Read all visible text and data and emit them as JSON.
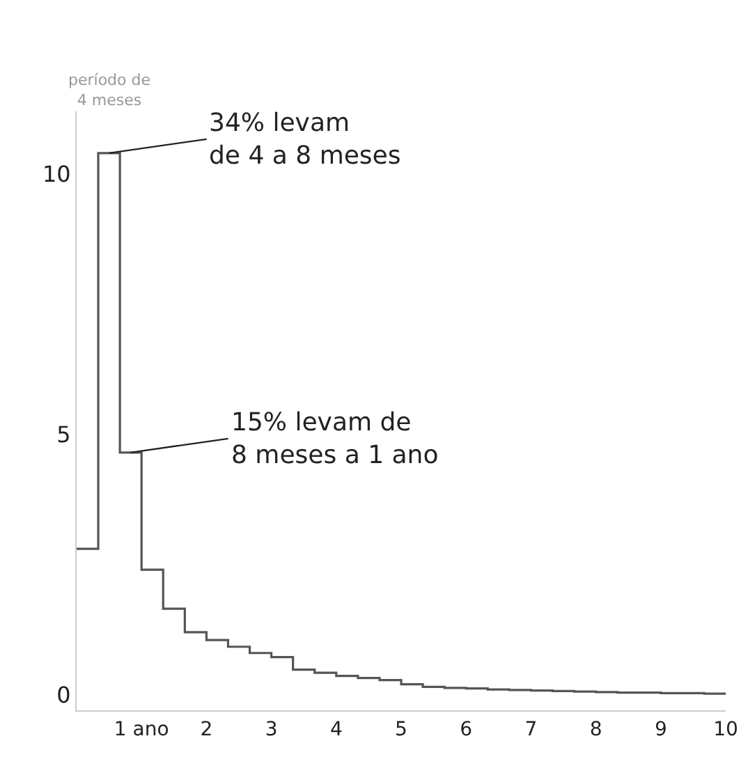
{
  "chart_data": {
    "type": "histogram",
    "bins": [
      0,
      0.333,
      0.667,
      1,
      1.333,
      1.667,
      2,
      2.333,
      2.667,
      3,
      3.333,
      3.667,
      4,
      4.333,
      4.667,
      5,
      5.333,
      5.667,
      6,
      6.333,
      6.667,
      7,
      7.333,
      7.667,
      8,
      8.333,
      8.667,
      9,
      9.333,
      9.667,
      10
    ],
    "values": [
      2.8,
      10.4,
      4.65,
      2.4,
      1.65,
      1.2,
      1.05,
      0.92,
      0.8,
      0.72,
      0.48,
      0.42,
      0.36,
      0.32,
      0.28,
      0.2,
      0.15,
      0.13,
      0.12,
      0.1,
      0.09,
      0.08,
      0.07,
      0.06,
      0.05,
      0.04,
      0.04,
      0.03,
      0.03,
      0.02
    ],
    "color": "#555555",
    "xlim": [
      0,
      10
    ],
    "xticks": [
      {
        "value": 1,
        "label": "1 ano"
      },
      2,
      3,
      4,
      5,
      6,
      7,
      8,
      9,
      10
    ],
    "ylim": [
      -0.3,
      11.2
    ],
    "yticks": [
      0,
      5,
      10
    ],
    "annotations": [
      "período de\n4 meses",
      {
        "text": "34% levam\nde 4 a 8 meses",
        "x": 0.5,
        "y": 10.4
      },
      {
        "text": "15% levam de\n8 meses a 1 ano",
        "x": 0.833,
        "y": 4.65
      }
    ]
  }
}
